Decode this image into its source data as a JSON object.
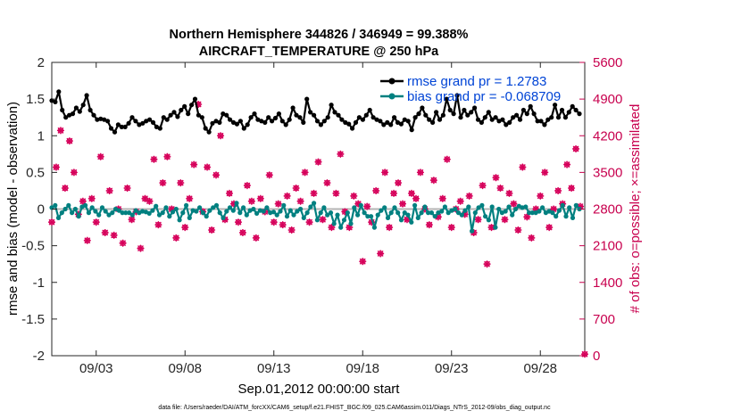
{
  "chart_data": {
    "type": "line",
    "title_line1": "Northern Hemisphere 344826 / 346949 = 99.388%",
    "title_line2": "AIRCRAFT_TEMPERATURE @ 250 hPa",
    "xlabel": "Sep.01,2012 00:00:00 start",
    "ylabel_left": "rmse and bias (model - observation)",
    "ylabel_right": "# of obs: o=possible; ×=assimilated",
    "xlim": [
      0.5,
      30.5
    ],
    "ylim_left": [
      -2,
      2
    ],
    "ylim_right": [
      0,
      5600
    ],
    "x_ticks": [
      {
        "x": 3,
        "label": "09/03"
      },
      {
        "x": 8,
        "label": "09/08"
      },
      {
        "x": 13,
        "label": "09/13"
      },
      {
        "x": 18,
        "label": "09/18"
      },
      {
        "x": 23,
        "label": "09/23"
      },
      {
        "x": 28,
        "label": "09/28"
      }
    ],
    "y_ticks_left": [
      "2",
      "1.5",
      "1",
      "0.5",
      "0",
      "-0.5",
      "-1",
      "-1.5",
      "-2"
    ],
    "y_ticks_right": [
      "5600",
      "4900",
      "4200",
      "3500",
      "2800",
      "2100",
      "1400",
      "700",
      "0"
    ],
    "series": [
      {
        "name": "rmse grand pr = 1.2783",
        "color": "#000000",
        "values": [
          1.48,
          1.46,
          1.6,
          1.35,
          1.25,
          1.28,
          1.3,
          1.38,
          1.33,
          1.42,
          1.55,
          1.35,
          1.28,
          1.22,
          1.23,
          1.22,
          1.2,
          1.1,
          1.05,
          1.15,
          1.12,
          1.12,
          1.17,
          1.25,
          1.2,
          1.15,
          1.17,
          1.2,
          1.22,
          1.18,
          1.12,
          1.1,
          1.25,
          1.22,
          1.28,
          1.32,
          1.26,
          1.35,
          1.4,
          1.3,
          1.42,
          1.5,
          1.28,
          1.25,
          1.1,
          1.05,
          1.17,
          1.2,
          1.18,
          1.3,
          1.28,
          1.22,
          1.18,
          1.16,
          1.2,
          1.1,
          1.15,
          1.25,
          1.3,
          1.22,
          1.2,
          1.18,
          1.25,
          1.2,
          1.24,
          1.3,
          1.2,
          1.15,
          1.22,
          1.38,
          1.28,
          1.25,
          1.18,
          1.5,
          1.32,
          1.28,
          1.2,
          1.15,
          1.2,
          1.25,
          1.42,
          1.32,
          1.28,
          1.22,
          1.18,
          1.16,
          1.1,
          1.18,
          1.25,
          1.22,
          1.28,
          1.35,
          1.25,
          1.22,
          1.2,
          1.15,
          1.18,
          1.15,
          1.25,
          1.18,
          1.16,
          1.22,
          1.2,
          1.08,
          1.25,
          1.3,
          1.38,
          1.28,
          1.22,
          1.18,
          1.32,
          1.22,
          1.28,
          1.5,
          1.35,
          1.3,
          1.55,
          1.25,
          1.35,
          1.28,
          1.32,
          1.38,
          1.22,
          1.18,
          1.25,
          1.32,
          1.22,
          1.25,
          1.2,
          1.22,
          1.15,
          1.18,
          1.25,
          1.28,
          1.22,
          1.35,
          1.3,
          1.4,
          1.3,
          1.2,
          1.2,
          1.15,
          1.22,
          1.25,
          1.42,
          1.25,
          1.35,
          1.25,
          1.32,
          1.4,
          1.35,
          1.3
        ],
        "x_range": [
          0.5,
          30.2
        ]
      },
      {
        "name": "bias grand pr = -0.068709",
        "color": "#008080",
        "values": [
          0.02,
          0.05,
          -0.12,
          -0.05,
          0.0,
          0.05,
          -0.05,
          0.0,
          -0.1,
          0.03,
          0.05,
          -0.05,
          0.02,
          -0.03,
          -0.08,
          0.02,
          -0.03,
          -0.08,
          -0.05,
          0.0,
          -0.02,
          -0.05,
          -0.05,
          -0.05,
          -0.08,
          -0.02,
          -0.05,
          -0.03,
          -0.04,
          -0.06,
          -0.02,
          0.04,
          -0.08,
          -0.05,
          0.02,
          -0.1,
          -0.04,
          0.0,
          -0.15,
          -0.05,
          0.05,
          -0.12,
          -0.02,
          -0.03,
          0.02,
          -0.05,
          -0.1,
          -0.02,
          0.02,
          0.05,
          -0.05,
          -0.12,
          -0.03,
          0.02,
          -0.02,
          0.08,
          -0.05,
          0.02,
          -0.08,
          -0.02,
          0.0,
          -0.06,
          -0.02,
          -0.03,
          0.02,
          -0.05,
          -0.04,
          -0.08,
          -0.03,
          0.05,
          -0.1,
          -0.02,
          -0.08,
          -0.03,
          0.0,
          -0.12,
          -0.05,
          0.03,
          0.08,
          -0.15,
          -0.05,
          0.02,
          -0.08,
          -0.05,
          -0.2,
          -0.08,
          -0.25,
          -0.15,
          -0.05,
          -0.2,
          0.02,
          -0.08,
          0.05,
          -0.05,
          -0.1,
          -0.1,
          -0.25,
          -0.08,
          -0.02,
          0.02,
          -0.12,
          -0.05,
          0.02,
          -0.05,
          -0.15,
          -0.05,
          -0.08,
          -0.18,
          0.05,
          -0.12,
          -0.05,
          0.03,
          -0.05,
          -0.05,
          -0.1,
          -0.05,
          -0.03,
          0.03,
          -0.05,
          -0.02,
          0.0,
          -0.05,
          -0.08,
          -0.02,
          0.03,
          -0.3,
          -0.05,
          0.02,
          0.05,
          -0.1,
          -0.15,
          0.03,
          -0.25,
          0.0,
          -0.05,
          -0.03,
          0.03,
          -0.08,
          0.0,
          0.04,
          0.02,
          0.03,
          -0.05,
          -0.05,
          -0.05,
          -0.03,
          0.02,
          -0.05,
          -0.03,
          -0.05,
          -0.1,
          -0.02,
          0.05,
          -0.1,
          0.02,
          -0.12,
          0.05,
          0.0
        ],
        "x_range": [
          0.5,
          30.2
        ]
      }
    ],
    "obs_count": {
      "color": "#d6005a",
      "points": [
        [
          0.5,
          2550
        ],
        [
          0.75,
          3600
        ],
        [
          1.0,
          4300
        ],
        [
          1.25,
          3200
        ],
        [
          1.5,
          4100
        ],
        [
          1.75,
          3500
        ],
        [
          2.0,
          2700
        ],
        [
          2.25,
          2950
        ],
        [
          2.5,
          2200
        ],
        [
          2.75,
          3000
        ],
        [
          3.0,
          2550
        ],
        [
          3.25,
          3800
        ],
        [
          3.5,
          2350
        ],
        [
          3.75,
          3150
        ],
        [
          4.0,
          2300
        ],
        [
          4.25,
          2800
        ],
        [
          4.5,
          2150
        ],
        [
          4.75,
          3200
        ],
        [
          5.0,
          2600
        ],
        [
          5.25,
          2750
        ],
        [
          5.5,
          2050
        ],
        [
          5.75,
          3000
        ],
        [
          6.0,
          2950
        ],
        [
          6.25,
          3750
        ],
        [
          6.5,
          2500
        ],
        [
          6.75,
          3300
        ],
        [
          7.0,
          3800
        ],
        [
          7.25,
          2800
        ],
        [
          7.5,
          2250
        ],
        [
          7.75,
          3300
        ],
        [
          8.0,
          2450
        ],
        [
          8.25,
          3000
        ],
        [
          8.5,
          3650
        ],
        [
          8.75,
          4800
        ],
        [
          9.0,
          2750
        ],
        [
          9.25,
          3600
        ],
        [
          9.5,
          2400
        ],
        [
          9.75,
          3450
        ],
        [
          10.0,
          4200
        ],
        [
          10.25,
          2600
        ],
        [
          10.5,
          3100
        ],
        [
          10.75,
          2900
        ],
        [
          11.0,
          2550
        ],
        [
          11.25,
          2350
        ],
        [
          11.5,
          3250
        ],
        [
          11.75,
          2950
        ],
        [
          12.0,
          2250
        ],
        [
          12.25,
          3000
        ],
        [
          12.5,
          2750
        ],
        [
          12.75,
          3450
        ],
        [
          13.0,
          2550
        ],
        [
          13.25,
          2900
        ],
        [
          13.5,
          2500
        ],
        [
          13.75,
          3050
        ],
        [
          14.0,
          2400
        ],
        [
          14.25,
          3200
        ],
        [
          14.5,
          2950
        ],
        [
          14.75,
          3500
        ],
        [
          15.0,
          2550
        ],
        [
          15.25,
          3100
        ],
        [
          15.5,
          3700
        ],
        [
          15.75,
          2600
        ],
        [
          16.0,
          3300
        ],
        [
          16.25,
          2450
        ],
        [
          16.5,
          3100
        ],
        [
          16.75,
          3850
        ],
        [
          17.0,
          2750
        ],
        [
          17.25,
          2450
        ],
        [
          17.5,
          3050
        ],
        [
          17.75,
          2900
        ],
        [
          18.0,
          1800
        ],
        [
          18.25,
          2850
        ],
        [
          18.5,
          2550
        ],
        [
          18.75,
          3150
        ],
        [
          19.0,
          1950
        ],
        [
          19.25,
          3500
        ],
        [
          19.5,
          2450
        ],
        [
          19.75,
          3100
        ],
        [
          20.0,
          3300
        ],
        [
          20.25,
          2900
        ],
        [
          20.5,
          2600
        ],
        [
          20.75,
          3100
        ],
        [
          21.0,
          3000
        ],
        [
          21.25,
          3500
        ],
        [
          21.5,
          2800
        ],
        [
          21.75,
          2500
        ],
        [
          22.0,
          3350
        ],
        [
          22.25,
          2650
        ],
        [
          22.5,
          3000
        ],
        [
          22.75,
          3750
        ],
        [
          23.0,
          2450
        ],
        [
          23.25,
          2800
        ],
        [
          23.5,
          2950
        ],
        [
          23.75,
          2700
        ],
        [
          24.0,
          3050
        ],
        [
          24.25,
          2350
        ],
        [
          24.5,
          2600
        ],
        [
          24.75,
          3250
        ],
        [
          25.0,
          1750
        ],
        [
          25.25,
          2450
        ],
        [
          25.5,
          3400
        ],
        [
          25.75,
          3200
        ],
        [
          26.0,
          2600
        ],
        [
          26.25,
          3100
        ],
        [
          26.5,
          2900
        ],
        [
          26.75,
          2400
        ],
        [
          27.0,
          3600
        ],
        [
          27.25,
          2650
        ],
        [
          27.5,
          2250
        ],
        [
          27.75,
          2800
        ],
        [
          28.0,
          3050
        ],
        [
          28.25,
          3500
        ],
        [
          28.5,
          2450
        ],
        [
          28.75,
          2800
        ],
        [
          29.0,
          3150
        ],
        [
          29.25,
          2900
        ],
        [
          29.5,
          3650
        ],
        [
          29.75,
          3200
        ],
        [
          30.0,
          3950
        ],
        [
          30.25,
          2850
        ],
        [
          30.5,
          30
        ]
      ]
    },
    "zero_line": {
      "y": 0,
      "color": "#b4b4b4"
    }
  },
  "footnote": "data file: /Users/raeder/DAI/ATM_forcXX/CAM6_setup/f.e21.FHIST_BGC.f09_025.CAM6assim.011/Diags_NTrS_2012-09/obs_diag_output.nc"
}
